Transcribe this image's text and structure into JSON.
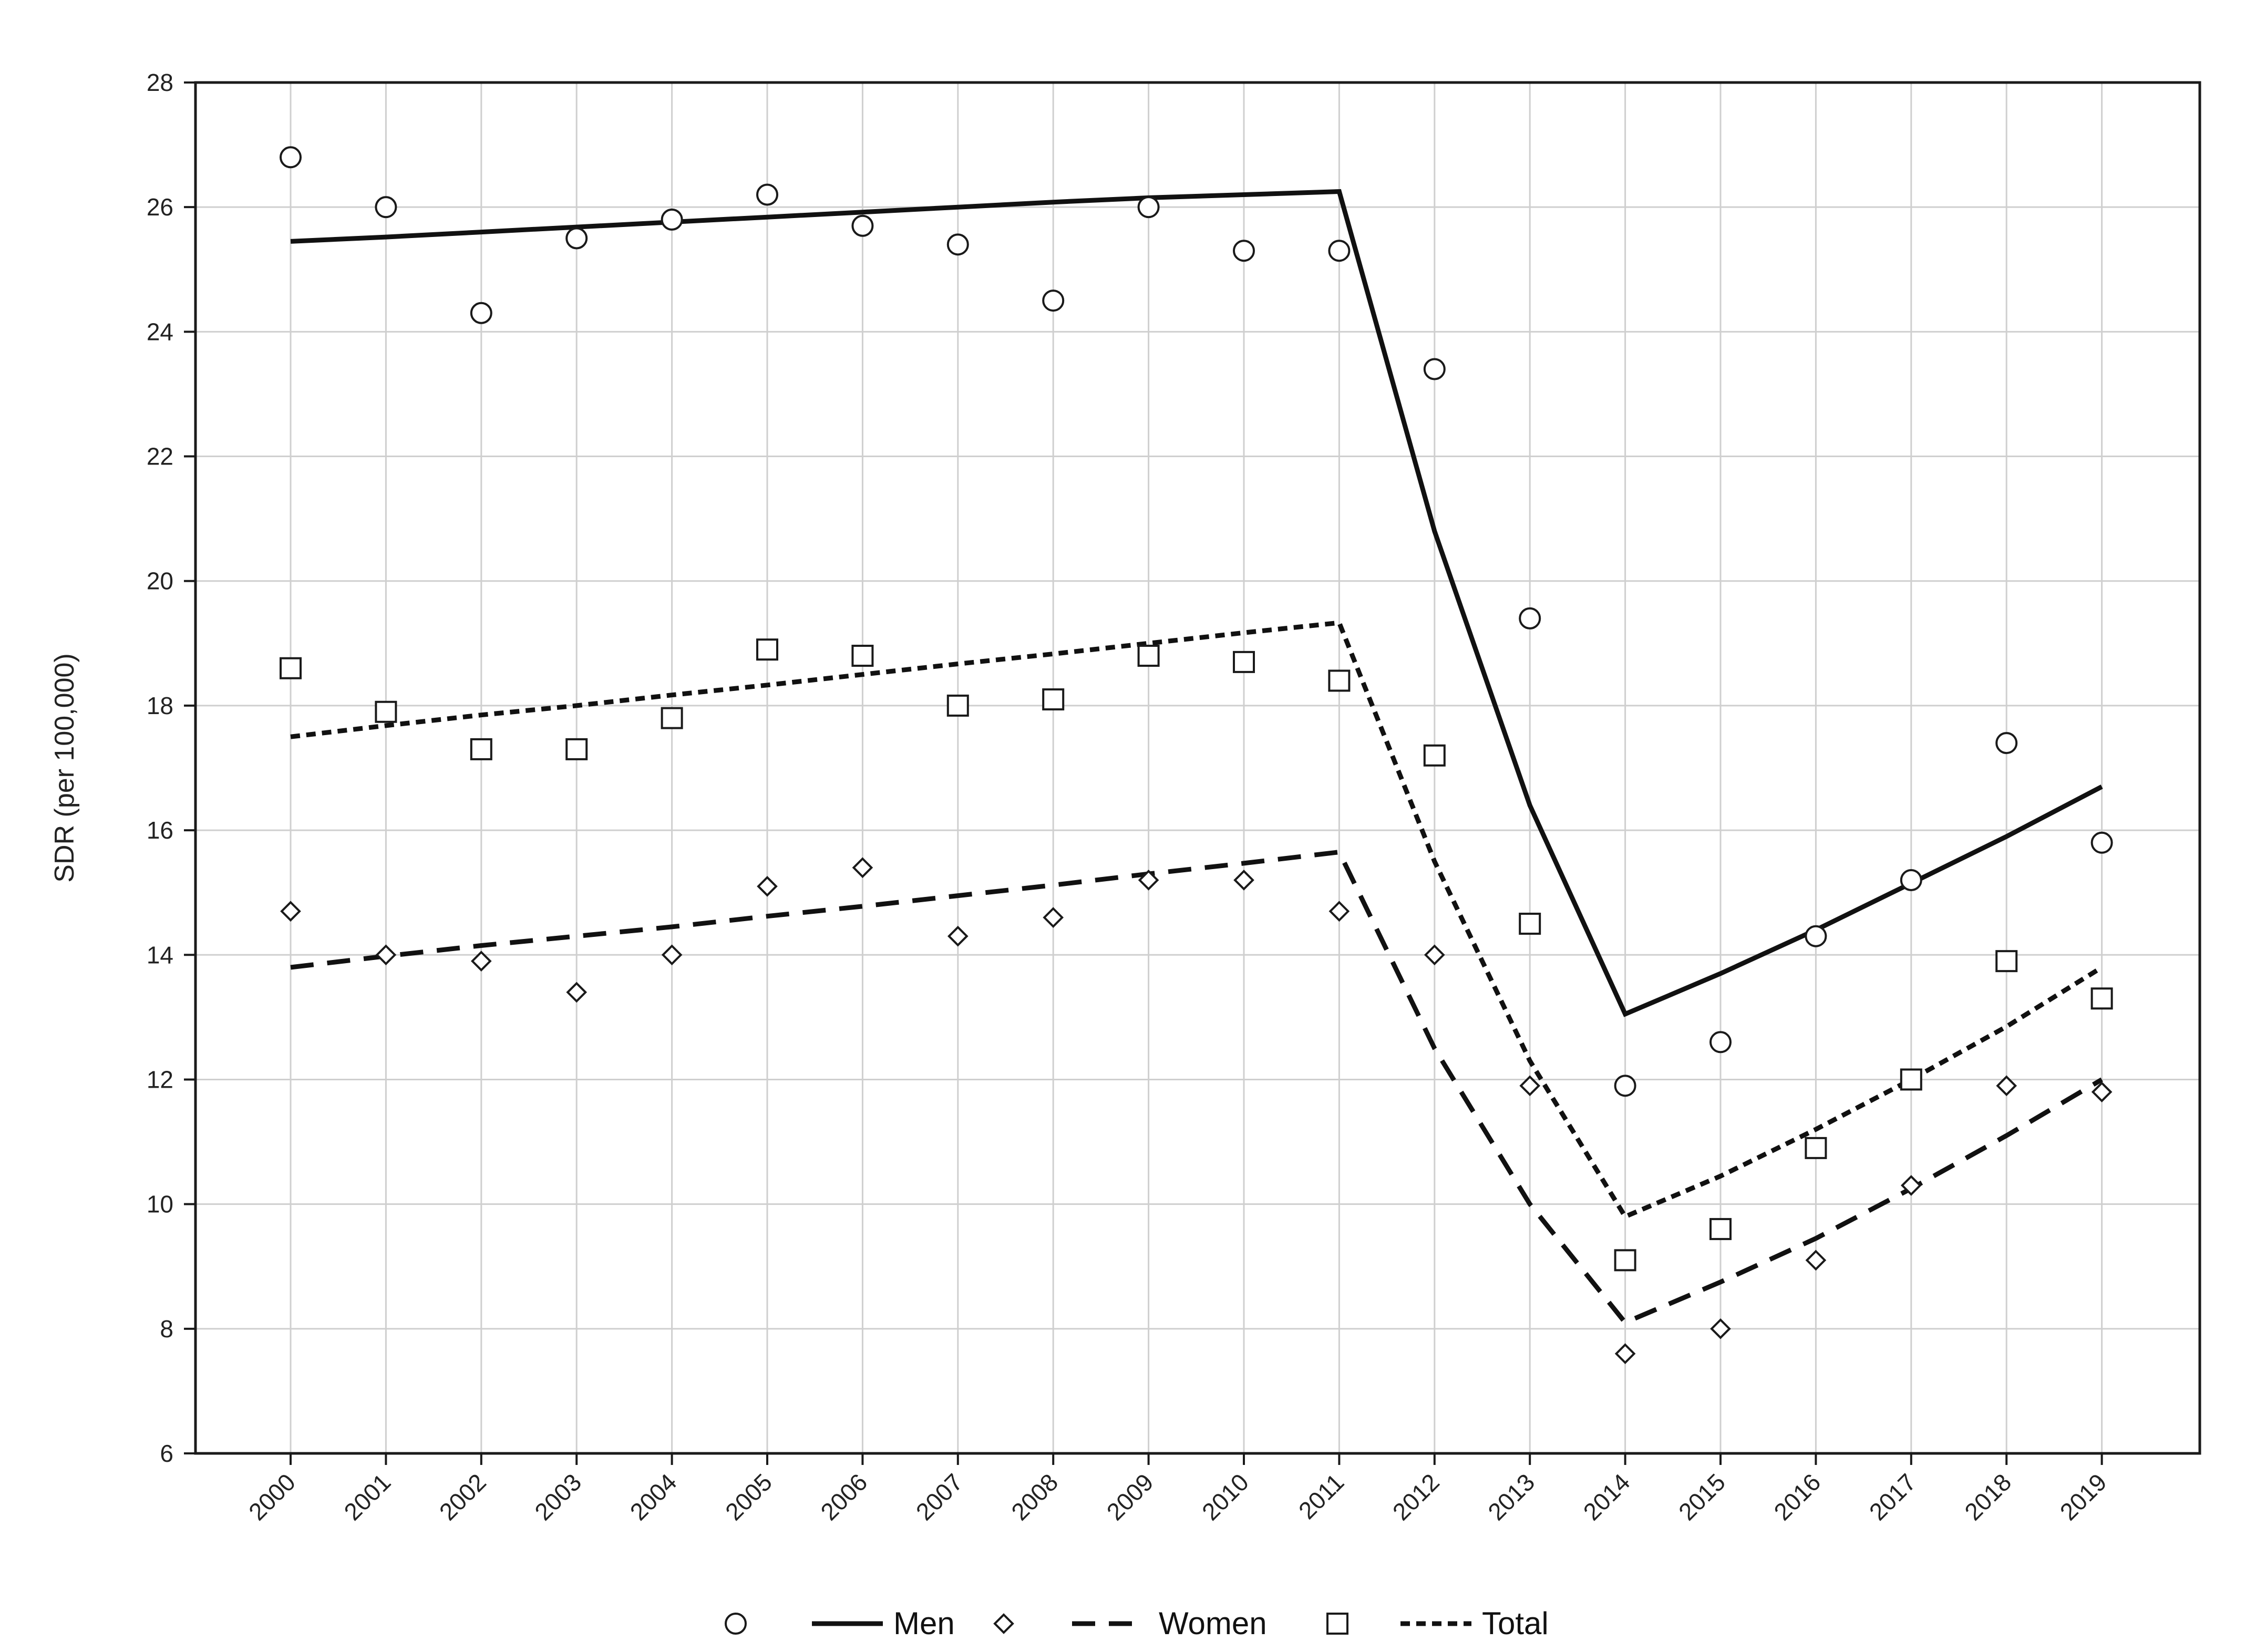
{
  "chart_data": {
    "type": "line",
    "title": "",
    "xlabel": "",
    "ylabel": "SDR (per 100,000)",
    "categories": [
      "2000",
      "2001",
      "2002",
      "2003",
      "2004",
      "2005",
      "2006",
      "2007",
      "2008",
      "2009",
      "2010",
      "2011",
      "2012",
      "2013",
      "2014",
      "2015",
      "2016",
      "2017",
      "2018",
      "2019"
    ],
    "ylim": [
      6,
      28
    ],
    "yticks": [
      6,
      8,
      10,
      12,
      14,
      16,
      18,
      20,
      22,
      24,
      26,
      28
    ],
    "grid": true,
    "legend_position": "bottom",
    "series": [
      {
        "name": "Men",
        "marker": "circle",
        "line_style": "solid",
        "observed": [
          26.8,
          26.0,
          24.3,
          25.5,
          25.8,
          26.2,
          25.7,
          25.4,
          24.5,
          26.0,
          25.3,
          25.3,
          23.4,
          19.4,
          11.9,
          12.6,
          14.3,
          15.2,
          17.4,
          15.8
        ],
        "fitted": [
          25.45,
          25.52,
          25.6,
          25.68,
          25.76,
          25.84,
          25.92,
          26.0,
          26.08,
          26.15,
          26.2,
          26.25,
          20.8,
          16.4,
          13.05,
          13.7,
          14.4,
          15.15,
          15.9,
          16.7
        ]
      },
      {
        "name": "Women",
        "marker": "diamond",
        "line_style": "dashed",
        "observed": [
          14.7,
          14.0,
          13.9,
          13.4,
          14.0,
          15.1,
          15.4,
          14.3,
          14.6,
          15.2,
          15.2,
          14.7,
          14.0,
          11.9,
          7.6,
          8.0,
          9.1,
          10.3,
          11.9,
          11.8
        ],
        "fitted": [
          13.8,
          13.98,
          14.15,
          14.3,
          14.45,
          14.62,
          14.78,
          14.95,
          15.12,
          15.3,
          15.47,
          15.65,
          12.5,
          10.0,
          8.1,
          8.75,
          9.45,
          10.25,
          11.1,
          12.0
        ]
      },
      {
        "name": "Total",
        "marker": "square",
        "line_style": "dotted",
        "observed": [
          18.6,
          17.9,
          17.3,
          17.3,
          17.8,
          18.9,
          18.8,
          18.0,
          18.1,
          18.8,
          18.7,
          18.4,
          17.2,
          14.5,
          9.1,
          9.6,
          10.9,
          12.0,
          13.9,
          13.3
        ],
        "fitted": [
          17.5,
          17.68,
          17.85,
          18.0,
          18.17,
          18.33,
          18.5,
          18.67,
          18.83,
          19.0,
          19.17,
          19.33,
          15.5,
          12.3,
          9.8,
          10.45,
          11.2,
          12.0,
          12.85,
          13.8
        ]
      }
    ]
  }
}
